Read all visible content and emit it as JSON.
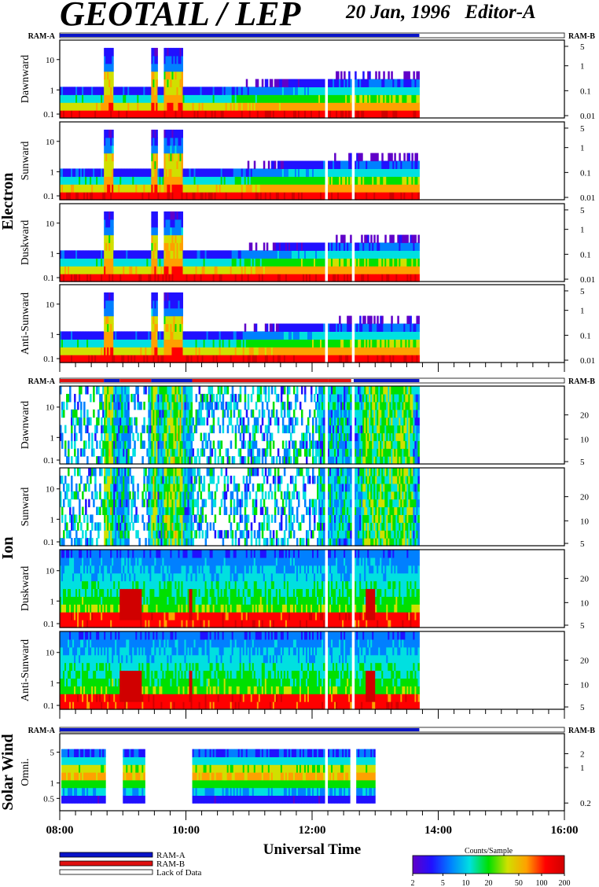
{
  "header": {
    "title": "GEOTAIL / LEP",
    "date": "20 Jan, 1996",
    "editor": "Editor-A"
  },
  "groups": {
    "electron": "Electron",
    "ion": "Ion",
    "solar_wind": "Solar Wind"
  },
  "status_bar_labels": {
    "ram_a": "RAM-A",
    "ram_b": "RAM-B"
  },
  "xaxis": {
    "title": "Universal Time",
    "ticks": [
      "08:00",
      "10:00",
      "12:00",
      "14:00",
      "16:00"
    ]
  },
  "legend": {
    "items": [
      {
        "label": "RAM-A",
        "color": "#0a14c8"
      },
      {
        "label": "RAM-B",
        "color": "#e01010"
      },
      {
        "label": "Lack of Data",
        "color": "#ffffff"
      }
    ]
  },
  "colorbar": {
    "title": "Counts/Sample",
    "ticks": [
      "2",
      "5",
      "10",
      "20",
      "50",
      "100",
      "200"
    ],
    "colors": [
      "#6000c8",
      "#2010ff",
      "#0080ff",
      "#00e0e0",
      "#00e000",
      "#d0e000",
      "#ffa000",
      "#ff0000",
      "#d00000"
    ]
  },
  "chart_data": {
    "type": "heatmap",
    "x_range_hours": [
      8,
      16
    ],
    "data_end_hour": 13.7,
    "gaps_hours": [
      [
        12.18,
        12.25
      ],
      [
        12.62,
        12.66
      ]
    ],
    "panels": [
      {
        "group": "electron",
        "label": "Dawnward",
        "left_ticks": [
          "10",
          "1",
          "0.1"
        ],
        "right_ticks": [
          "5",
          "1",
          "0.1",
          "0.01"
        ]
      },
      {
        "group": "electron",
        "label": "Sunward",
        "left_ticks": [
          "10",
          "1",
          "0.1"
        ],
        "right_ticks": [
          "5",
          "1",
          "0.1",
          "0.01"
        ]
      },
      {
        "group": "electron",
        "label": "Duskward",
        "left_ticks": [
          "10",
          "1",
          "0.1"
        ],
        "right_ticks": [
          "5",
          "1",
          "0.1",
          "0.01"
        ]
      },
      {
        "group": "electron",
        "label": "Anti-Sunward",
        "left_ticks": [
          "10",
          "1",
          "0.1"
        ],
        "right_ticks": [
          "5",
          "1",
          "0.1",
          "0.01"
        ]
      },
      {
        "group": "ion",
        "label": "Dawnward",
        "left_ticks": [
          "10",
          "1",
          "0.1"
        ],
        "right_ticks": [
          "20",
          "10",
          "5"
        ]
      },
      {
        "group": "ion",
        "label": "Sunward",
        "left_ticks": [
          "10",
          "1",
          "0.1"
        ],
        "right_ticks": [
          "20",
          "10",
          "5"
        ]
      },
      {
        "group": "ion",
        "label": "Duskward",
        "left_ticks": [
          "10",
          "1",
          "0.1"
        ],
        "right_ticks": [
          "20",
          "10",
          "5"
        ]
      },
      {
        "group": "ion",
        "label": "Anti-Sunward",
        "left_ticks": [
          "10",
          "1",
          "0.1"
        ],
        "right_ticks": [
          "20",
          "10",
          "5"
        ]
      },
      {
        "group": "solar_wind",
        "label": "Omni.",
        "left_ticks": [
          "5",
          "1",
          "0.5"
        ],
        "right_ticks": [
          "2",
          "1",
          "0.2"
        ]
      }
    ]
  }
}
